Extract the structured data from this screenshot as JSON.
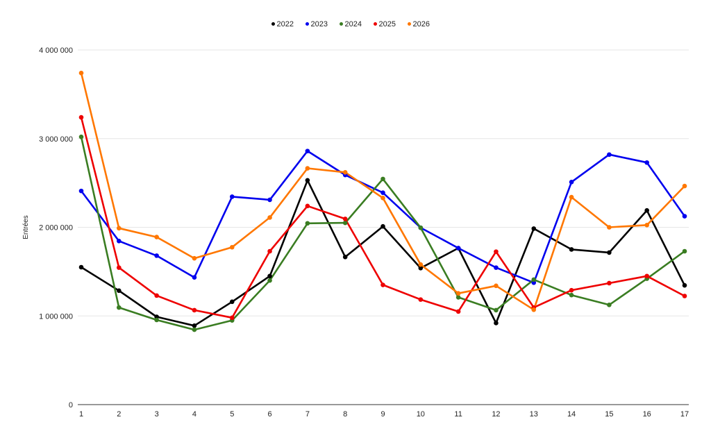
{
  "chart_data": {
    "type": "line",
    "title": "",
    "xlabel": "",
    "ylabel": "Entrées",
    "ylim": [
      0,
      4000000
    ],
    "y_ticks": [
      {
        "value": 0,
        "label": "0"
      },
      {
        "value": 1000000,
        "label": "1 000 000"
      },
      {
        "value": 2000000,
        "label": "2 000 000"
      },
      {
        "value": 3000000,
        "label": "3 000 000"
      },
      {
        "value": 4000000,
        "label": "4 000 000"
      }
    ],
    "x": [
      "1",
      "2",
      "3",
      "4",
      "5",
      "6",
      "7",
      "8",
      "9",
      "10",
      "11",
      "12",
      "13",
      "14",
      "15",
      "16",
      "17"
    ],
    "grid": true,
    "legend": "top-center",
    "series": [
      {
        "name": "2022",
        "color": "#000000",
        "values": [
          1550000,
          1285000,
          990000,
          890000,
          1160000,
          1450000,
          2530000,
          1665000,
          2010000,
          1540000,
          1765000,
          920000,
          1985000,
          1750000,
          1715000,
          2190000,
          1345000
        ]
      },
      {
        "name": "2023",
        "color": "#0000ee",
        "values": [
          2410000,
          1845000,
          1680000,
          1435000,
          2345000,
          2310000,
          2860000,
          2590000,
          2390000,
          1995000,
          1765000,
          1545000,
          1375000,
          2510000,
          2820000,
          2730000,
          2125000
        ]
      },
      {
        "name": "2024",
        "color": "#3a7d22",
        "values": [
          3020000,
          1095000,
          955000,
          845000,
          950000,
          1400000,
          2045000,
          2050000,
          2545000,
          1995000,
          1210000,
          1065000,
          1410000,
          1235000,
          1125000,
          1420000,
          1730000
        ]
      },
      {
        "name": "2025",
        "color": "#ee0000",
        "values": [
          3240000,
          1545000,
          1230000,
          1065000,
          980000,
          1730000,
          2240000,
          2095000,
          1350000,
          1185000,
          1050000,
          1725000,
          1095000,
          1290000,
          1370000,
          1450000,
          1225000
        ]
      },
      {
        "name": "2026",
        "color": "#ff7700",
        "values": [
          3740000,
          1990000,
          1890000,
          1650000,
          1775000,
          2110000,
          2665000,
          2620000,
          2330000,
          1580000,
          1255000,
          1340000,
          1070000,
          2340000,
          2000000,
          2025000,
          2465000
        ]
      }
    ]
  }
}
